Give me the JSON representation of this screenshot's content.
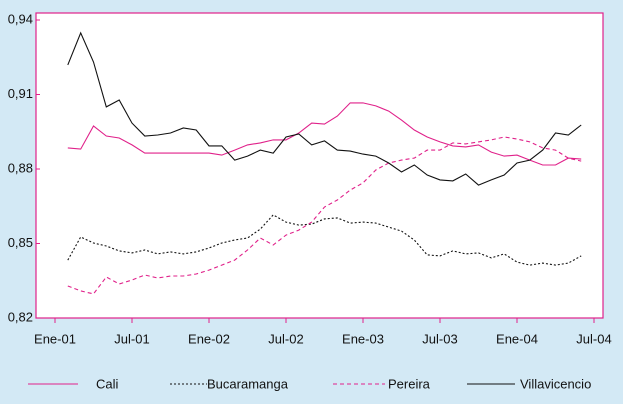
{
  "chart_data": {
    "type": "line",
    "categories": [
      "Ene-01",
      null,
      null,
      null,
      null,
      null,
      "Jul-01",
      null,
      null,
      null,
      null,
      null,
      "Ene-02",
      null,
      null,
      null,
      null,
      null,
      "Jul-02",
      null,
      null,
      null,
      null,
      null,
      "Ene-03",
      null,
      null,
      null,
      null,
      null,
      "Jul-03",
      null,
      null,
      null,
      null,
      null,
      "Ene-04",
      null,
      null,
      null,
      null,
      null,
      "Jul-04"
    ],
    "ylim": [
      0.82,
      0.94
    ],
    "yticks": [
      {
        "value": 0.82,
        "label": "0,82"
      },
      {
        "value": 0.85,
        "label": "0,85"
      },
      {
        "value": 0.88,
        "label": "0,88"
      },
      {
        "value": 0.91,
        "label": "0,91"
      },
      {
        "value": 0.94,
        "label": "0,94"
      }
    ],
    "series": [
      {
        "name": "Cali",
        "color": "#e0218a",
        "dash": "solid",
        "values": [
          null,
          0.8885,
          0.888,
          0.8973,
          0.8933,
          0.8925,
          0.8897,
          0.8864,
          0.8864,
          0.8864,
          0.8864,
          0.8864,
          0.8864,
          0.8856,
          0.8876,
          0.8897,
          0.8905,
          0.8917,
          0.8917,
          0.8945,
          0.8985,
          0.8981,
          0.9013,
          0.9066,
          0.9066,
          0.9054,
          0.9033,
          0.8997,
          0.8957,
          0.8929,
          0.8909,
          0.8893,
          0.8889,
          0.8897,
          0.8868,
          0.8852,
          0.8856,
          0.8836,
          0.8816,
          0.8816,
          0.8844,
          0.884,
          null
        ]
      },
      {
        "name": "Bucaramanga",
        "color": "#111111",
        "dash": "dotted",
        "values": [
          null,
          0.8433,
          0.8526,
          0.8502,
          0.849,
          0.847,
          0.8462,
          0.8474,
          0.8458,
          0.8466,
          0.8458,
          0.8466,
          0.8482,
          0.8502,
          0.8514,
          0.8522,
          0.8558,
          0.8615,
          0.8586,
          0.8574,
          0.8578,
          0.8599,
          0.8603,
          0.8582,
          0.8586,
          0.8582,
          0.8566,
          0.855,
          0.8514,
          0.8454,
          0.845,
          0.847,
          0.8458,
          0.8462,
          0.8442,
          0.8458,
          0.8425,
          0.8413,
          0.8421,
          0.8413,
          0.8421,
          0.845,
          null
        ]
      },
      {
        "name": "Pereira",
        "color": "#e0218a",
        "dash": "dashed",
        "values": [
          null,
          0.8329,
          0.8309,
          0.8297,
          0.8365,
          0.8337,
          0.8353,
          0.8373,
          0.8361,
          0.8369,
          0.8369,
          0.8377,
          0.8393,
          0.8413,
          0.8433,
          0.8474,
          0.8522,
          0.8494,
          0.8534,
          0.8554,
          0.8586,
          0.8647,
          0.8675,
          0.8715,
          0.8744,
          0.8796,
          0.8824,
          0.8836,
          0.8844,
          0.8876,
          0.8876,
          0.8905,
          0.8901,
          0.8909,
          0.8917,
          0.8929,
          0.8921,
          0.8909,
          0.8885,
          0.8876,
          0.8844,
          0.8832,
          null
        ]
      },
      {
        "name": "Villavicencio",
        "color": "#111111",
        "dash": "solid",
        "values": [
          null,
          0.9219,
          0.9348,
          0.9231,
          0.905,
          0.9078,
          0.8985,
          0.8933,
          0.8937,
          0.8945,
          0.8965,
          0.8957,
          0.8893,
          0.8893,
          0.8836,
          0.8852,
          0.8876,
          0.8864,
          0.8929,
          0.8941,
          0.8897,
          0.8913,
          0.8876,
          0.8872,
          0.886,
          0.8852,
          0.8824,
          0.8788,
          0.8816,
          0.8776,
          0.8756,
          0.8752,
          0.878,
          0.8735,
          0.8756,
          0.8776,
          0.8824,
          0.8836,
          0.8876,
          0.8945,
          0.8937,
          0.8977,
          null
        ]
      }
    ]
  }
}
